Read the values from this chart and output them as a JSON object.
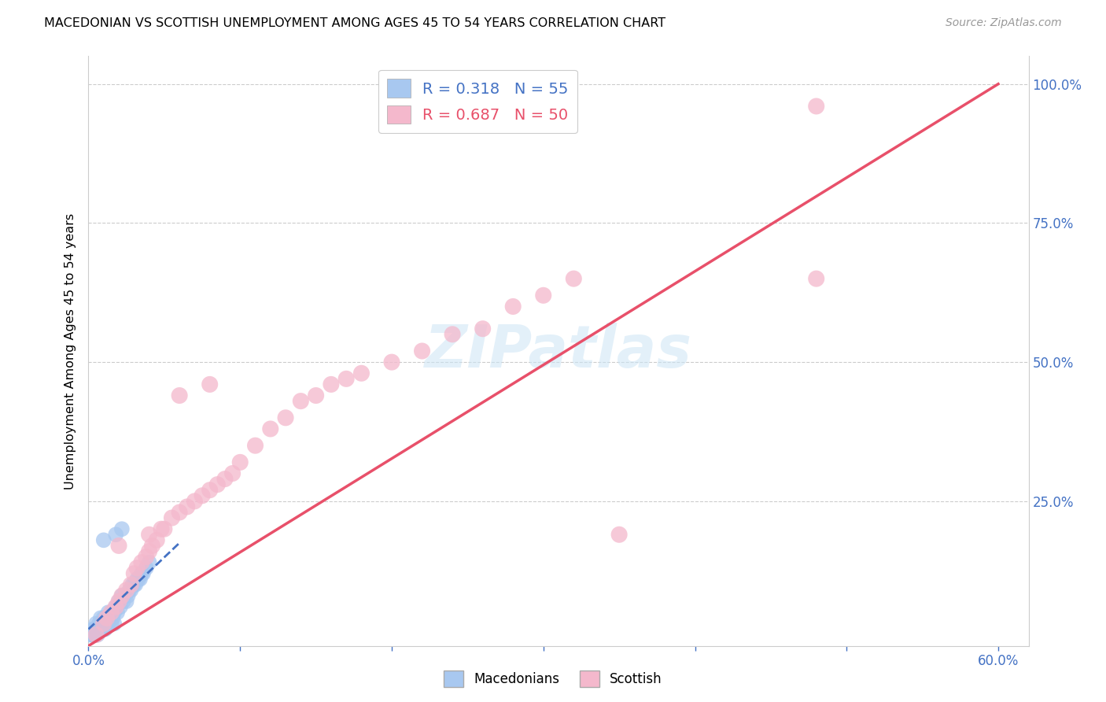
{
  "title": "MACEDONIAN VS SCOTTISH UNEMPLOYMENT AMONG AGES 45 TO 54 YEARS CORRELATION CHART",
  "source": "Source: ZipAtlas.com",
  "ylabel": "Unemployment Among Ages 45 to 54 years",
  "xlim": [
    0.0,
    0.62
  ],
  "ylim": [
    -0.01,
    1.05
  ],
  "macedonian_R": 0.318,
  "macedonian_N": 55,
  "scottish_R": 0.687,
  "scottish_N": 50,
  "macedonian_color": "#a8c8f0",
  "scottish_color": "#f4b8cc",
  "macedonian_line_color": "#4472c4",
  "scottish_line_color": "#e8506a",
  "grid_color": "#cccccc",
  "macedonian_x": [
    0.001,
    0.002,
    0.003,
    0.003,
    0.004,
    0.004,
    0.005,
    0.005,
    0.005,
    0.006,
    0.006,
    0.007,
    0.007,
    0.008,
    0.008,
    0.009,
    0.009,
    0.01,
    0.01,
    0.011,
    0.011,
    0.012,
    0.012,
    0.013,
    0.013,
    0.014,
    0.015,
    0.015,
    0.016,
    0.017,
    0.017,
    0.018,
    0.019,
    0.02,
    0.021,
    0.022,
    0.023,
    0.024,
    0.025,
    0.026,
    0.027,
    0.028,
    0.029,
    0.03,
    0.031,
    0.032,
    0.033,
    0.034,
    0.035,
    0.036,
    0.038,
    0.04,
    0.022,
    0.018,
    0.01
  ],
  "macedonian_y": [
    0.01,
    0.01,
    0.02,
    0.01,
    0.02,
    0.01,
    0.03,
    0.02,
    0.01,
    0.02,
    0.01,
    0.03,
    0.02,
    0.04,
    0.02,
    0.03,
    0.02,
    0.04,
    0.02,
    0.03,
    0.02,
    0.04,
    0.03,
    0.05,
    0.03,
    0.04,
    0.05,
    0.03,
    0.04,
    0.05,
    0.03,
    0.06,
    0.05,
    0.07,
    0.06,
    0.08,
    0.07,
    0.08,
    0.07,
    0.08,
    0.09,
    0.09,
    0.1,
    0.1,
    0.1,
    0.11,
    0.11,
    0.11,
    0.12,
    0.12,
    0.13,
    0.14,
    0.2,
    0.19,
    0.18
  ],
  "scottish_x": [
    0.005,
    0.01,
    0.012,
    0.015,
    0.018,
    0.02,
    0.022,
    0.025,
    0.028,
    0.03,
    0.032,
    0.035,
    0.038,
    0.04,
    0.042,
    0.045,
    0.048,
    0.05,
    0.055,
    0.06,
    0.065,
    0.07,
    0.075,
    0.08,
    0.085,
    0.09,
    0.095,
    0.1,
    0.11,
    0.12,
    0.13,
    0.14,
    0.15,
    0.16,
    0.17,
    0.18,
    0.2,
    0.22,
    0.24,
    0.26,
    0.28,
    0.3,
    0.32,
    0.02,
    0.04,
    0.06,
    0.08,
    0.48,
    0.48,
    0.35
  ],
  "scottish_y": [
    0.01,
    0.03,
    0.04,
    0.05,
    0.06,
    0.07,
    0.08,
    0.09,
    0.1,
    0.12,
    0.13,
    0.14,
    0.15,
    0.16,
    0.17,
    0.18,
    0.2,
    0.2,
    0.22,
    0.23,
    0.24,
    0.25,
    0.26,
    0.27,
    0.28,
    0.29,
    0.3,
    0.32,
    0.35,
    0.38,
    0.4,
    0.43,
    0.44,
    0.46,
    0.47,
    0.48,
    0.5,
    0.52,
    0.55,
    0.56,
    0.6,
    0.62,
    0.65,
    0.17,
    0.19,
    0.44,
    0.46,
    0.96,
    0.65,
    0.19
  ],
  "mac_line_x": [
    0.0,
    0.06
  ],
  "mac_line_y": [
    0.02,
    0.175
  ],
  "scot_line_x": [
    0.0,
    0.6
  ],
  "scot_line_y": [
    -0.01,
    1.0
  ]
}
